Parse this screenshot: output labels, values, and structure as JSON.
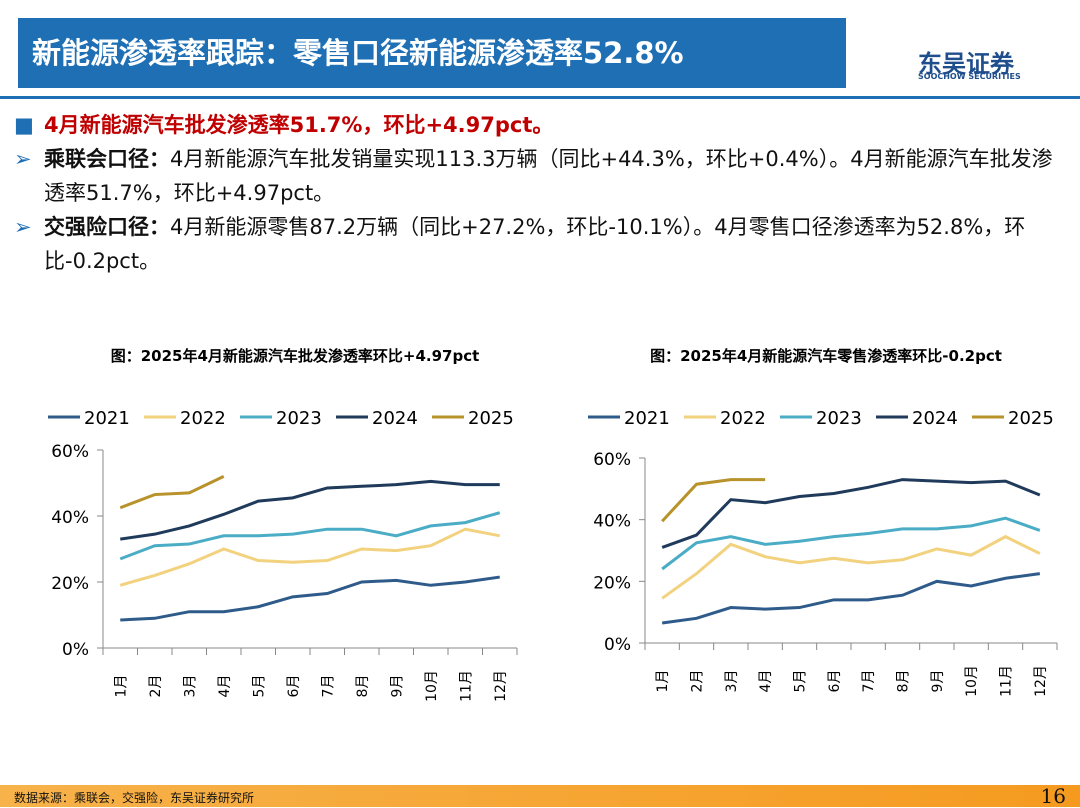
{
  "header": {
    "title": "新能源渗透率跟踪：零售口径新能源渗透率52.8%",
    "logo": "东吴证券",
    "logo_en": "SOOCHOW SECURITIES"
  },
  "bullets": [
    {
      "text": "4月新能源汽车批发渗透率51.7%，环比+4.97pct。"
    },
    {
      "label": "乘联会口径：",
      "text": "4月新能源汽车批发销量实现113.3万辆（同比+44.3%，环比+0.4%）。4月新能源汽车批发渗透率51.7%，环比+4.97pct。"
    },
    {
      "label": "交强险口径：",
      "text": "4月新能源零售87.2万辆（同比+27.2%，环比-10.1%）。4月零售口径渗透率为52.8%，环比-0.2pct。"
    }
  ],
  "chart_data": [
    {
      "type": "line",
      "title": "图：2025年4月新能源汽车批发渗透率环比+4.97pct",
      "categories": [
        "1月",
        "2月",
        "3月",
        "4月",
        "5月",
        "6月",
        "7月",
        "8月",
        "9月",
        "10月",
        "11月",
        "12月"
      ],
      "ylim": [
        0,
        60
      ],
      "yticks": [
        {
          "value": 0,
          "label": "0%"
        },
        {
          "value": 20,
          "label": "20%"
        },
        {
          "value": 40,
          "label": "40%"
        },
        {
          "value": 60,
          "label": "60%"
        }
      ],
      "grid": false,
      "legend": "top",
      "series": [
        {
          "name": "2021",
          "color": "#2e5b8a",
          "values": [
            8.5,
            9,
            11,
            11,
            12.5,
            15.5,
            16.5,
            20,
            20.5,
            19,
            20,
            21.5
          ]
        },
        {
          "name": "2022",
          "color": "#f2d27e",
          "values": [
            19,
            22,
            25.5,
            30,
            26.5,
            26,
            26.5,
            30,
            29.5,
            31,
            36,
            34
          ]
        },
        {
          "name": "2023",
          "color": "#4bacc6",
          "values": [
            27,
            31,
            31.5,
            34,
            34,
            34.5,
            36,
            36,
            34,
            37,
            38,
            41
          ]
        },
        {
          "name": "2024",
          "color": "#1f3a5a",
          "values": [
            33,
            34.5,
            37,
            40.5,
            44.5,
            45.5,
            48.5,
            49,
            49.5,
            50.5,
            49.5,
            49.5
          ]
        },
        {
          "name": "2025",
          "color": "#b8922a",
          "values": [
            42.5,
            46.5,
            47,
            52,
            null,
            null,
            null,
            null,
            null,
            null,
            null,
            null
          ]
        }
      ]
    },
    {
      "type": "line",
      "title": "图：2025年4月新能源汽车零售渗透率环比-0.2pct",
      "categories": [
        "1月",
        "2月",
        "3月",
        "4月",
        "5月",
        "6月",
        "7月",
        "8月",
        "9月",
        "10月",
        "11月",
        "12月"
      ],
      "ylim": [
        0,
        60
      ],
      "yticks": [
        {
          "value": 0,
          "label": "0%"
        },
        {
          "value": 20,
          "label": "20%"
        },
        {
          "value": 40,
          "label": "40%"
        },
        {
          "value": 60,
          "label": "60%"
        }
      ],
      "grid": false,
      "legend": "top",
      "series": [
        {
          "name": "2021",
          "color": "#2e5b8a",
          "values": [
            6.5,
            8,
            11.5,
            11,
            11.5,
            14,
            14,
            15.5,
            20,
            18.5,
            21,
            22.5
          ]
        },
        {
          "name": "2022",
          "color": "#f2d27e",
          "values": [
            14.5,
            22.5,
            32,
            28,
            26,
            27.5,
            26,
            27,
            30.5,
            28.5,
            34.5,
            29
          ]
        },
        {
          "name": "2023",
          "color": "#4bacc6",
          "values": [
            24,
            32.5,
            34.5,
            32,
            33,
            34.5,
            35.5,
            37,
            37,
            38,
            40.5,
            36.5
          ]
        },
        {
          "name": "2024",
          "color": "#1f3a5a",
          "values": [
            31,
            35,
            46.5,
            45.5,
            47.5,
            48.5,
            50.5,
            53,
            52.5,
            52,
            52.5,
            48
          ]
        },
        {
          "name": "2025",
          "color": "#b8922a",
          "values": [
            39.5,
            51.5,
            53,
            53,
            null,
            null,
            null,
            null,
            null,
            null,
            null,
            null
          ]
        }
      ]
    }
  ],
  "footer": {
    "source": "数据来源：乘联会，交强险，东吴证券研究所",
    "page": "16"
  }
}
